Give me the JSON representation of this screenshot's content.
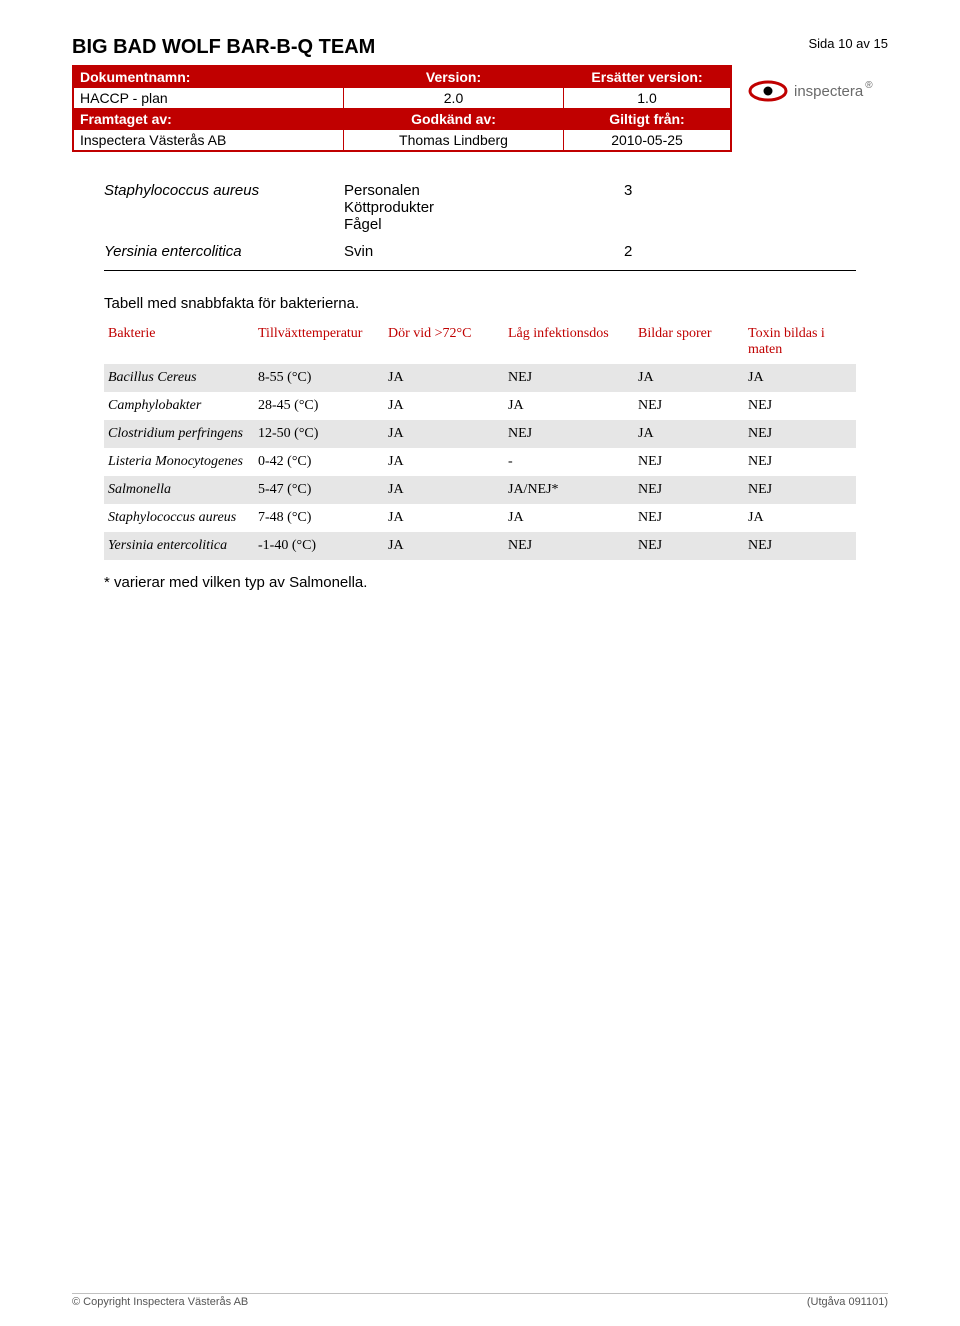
{
  "header": {
    "company": "BIG BAD WOLF BAR-B-Q TEAM",
    "page_counter": "Sida 10 av 15"
  },
  "doc_table": {
    "head_cells": [
      "Dokumentnamn:",
      "Version:",
      "Ersätter version:"
    ],
    "row1": [
      "HACCP - plan",
      "2.0",
      "1.0"
    ],
    "head2": [
      "Framtaget av:",
      "Godkänd av:",
      "Giltigt från:"
    ],
    "row2": [
      "Inspectera Västerås AB",
      "Thomas Lindberg",
      "2010-05-25"
    ]
  },
  "logo": {
    "text": "inspectera",
    "outer_color": "#c00000",
    "inner_color": "#000000"
  },
  "small_table": {
    "rows": [
      {
        "name": "Staphylococcus aureus",
        "source": "Personalen\nKöttprodukter\nFågel",
        "val": "3"
      },
      {
        "name": "Yersinia entercolitica",
        "source": "Svin",
        "val": "2"
      }
    ]
  },
  "caption": "Tabell med snabbfakta för bakterierna.",
  "fact_table": {
    "head": [
      "Bakterie",
      "Tillväxttemperatur",
      "Dör vid >72°C",
      "Låg infektionsdos",
      "Bildar sporer",
      "Toxin bildas i maten"
    ],
    "rows": [
      {
        "cells": [
          "Bacillus Cereus",
          "8-55 (°C)",
          "JA",
          "NEJ",
          "JA",
          "JA"
        ],
        "shade": true
      },
      {
        "cells": [
          "Camphylobakter",
          "28-45 (°C)",
          "JA",
          "JA",
          "NEJ",
          "NEJ"
        ],
        "shade": false
      },
      {
        "cells": [
          "Clostridium perfringens",
          "12-50 (°C)",
          "JA",
          "NEJ",
          "JA",
          "NEJ"
        ],
        "shade": true
      },
      {
        "cells": [
          "Listeria Monocytogenes",
          "0-42 (°C)",
          "JA",
          "-",
          "NEJ",
          "NEJ"
        ],
        "shade": false
      },
      {
        "cells": [
          "Salmonella",
          "5-47 (°C)",
          "JA",
          "JA/NEJ*",
          "NEJ",
          "NEJ"
        ],
        "shade": true
      },
      {
        "cells": [
          "Staphylococcus aureus",
          "7-48 (°C)",
          "JA",
          "JA",
          "NEJ",
          "JA"
        ],
        "shade": false
      },
      {
        "cells": [
          "Yersinia entercolitica",
          "-1-40 (°C)",
          "JA",
          "NEJ",
          "NEJ",
          "NEJ"
        ],
        "shade": true
      }
    ]
  },
  "note": "* varierar med vilken typ av Salmonella.",
  "footer": {
    "left": "© Copyright Inspectera Västerås AB",
    "right": "(Utgåva 091101)"
  },
  "colors": {
    "brand_red": "#c00000",
    "row_shade": "#e6e6e6"
  }
}
